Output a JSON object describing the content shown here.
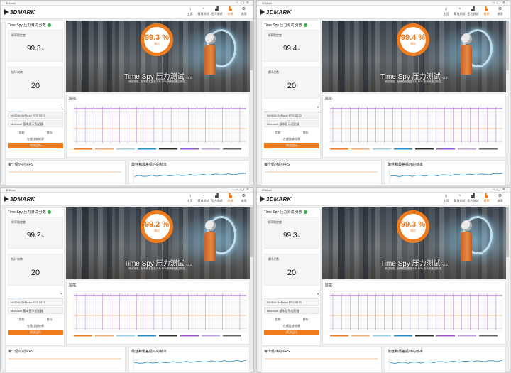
{
  "colors": {
    "accent": "#f07b1d",
    "ok": "#3fb34f",
    "link": "#2a8fd8",
    "line_purple": "#9b59c8",
    "line_orange": "#f0b078",
    "line_blue": "#2b8cc4"
  },
  "app": {
    "window_title": "3DMark",
    "brand": "3DMARK"
  },
  "nav": [
    {
      "icon": "home-icon",
      "glyph": "⌂",
      "label": "主页"
    },
    {
      "icon": "benchmark-icon",
      "glyph": "◔",
      "label": "基准测试"
    },
    {
      "icon": "stress-icon",
      "glyph": "▟",
      "label": "压力测试"
    },
    {
      "icon": "results-icon",
      "glyph": "▙",
      "label": "结果"
    },
    {
      "icon": "options-icon",
      "glyph": "⚙",
      "label": "选项"
    }
  ],
  "quads": [
    {
      "test_title": "Time Spy 压力测试 分数",
      "stability_label": "帧率稳定度",
      "stability_value": "99.3",
      "stability_unit": "%",
      "loops_label": "循环次数",
      "loops_value": "20",
      "gauge_value": "99.3 %",
      "gauge_label": "通过",
      "hero_title": "Time Spy 压力测试",
      "hero_title_suffix": "v1.2",
      "hero_sub": "测试完成。帧率稳定度至少为 97% 的系统通过测试。",
      "monitor_title": "监控",
      "selector": "显示全部硬件",
      "gpu": "NVIDIA GeForce RTX 5070",
      "display": "Microsoft 基本显示适配器",
      "btn_a": "比较",
      "btn_b": "保存",
      "link": "在线比较结果",
      "action_btn": "再次运行",
      "fps_title": "每个循环的 FPS",
      "frame_title": "最佳和最差循环的帧率"
    },
    {
      "test_title": "Time Spy 压力测试 分数",
      "stability_label": "帧率稳定度",
      "stability_value": "99.4",
      "stability_unit": "%",
      "loops_label": "循环次数",
      "loops_value": "20",
      "gauge_value": "99.4 %",
      "gauge_label": "通过",
      "hero_title": "Time Spy 压力测试",
      "hero_title_suffix": "v1.2",
      "hero_sub": "测试完成。帧率稳定度至少为 97% 的系统通过测试。",
      "monitor_title": "监控",
      "selector": "显示全部硬件",
      "gpu": "NVIDIA GeForce RTX 5070",
      "display": "Microsoft 基本显示适配器",
      "btn_a": "比较",
      "btn_b": "保存",
      "link": "在线比较结果",
      "action_btn": "再次运行",
      "fps_title": "每个循环的 FPS",
      "frame_title": "最佳和最差循环的帧率"
    },
    {
      "test_title": "Time Spy 压力测试 分数",
      "stability_label": "帧率稳定度",
      "stability_value": "99.2",
      "stability_unit": "%",
      "loops_label": "循环次数",
      "loops_value": "20",
      "gauge_value": "99.2 %",
      "gauge_label": "通过",
      "hero_title": "Time Spy 压力测试",
      "hero_title_suffix": "v1.2",
      "hero_sub": "测试完成。帧率稳定度至少为 97% 的系统通过测试。",
      "monitor_title": "监控",
      "selector": "显示全部硬件",
      "gpu": "NVIDIA GeForce RTX 5070",
      "display": "Microsoft 基本显示适配器",
      "btn_a": "比较",
      "btn_b": "保存",
      "link": "在线比较结果",
      "action_btn": "再次运行",
      "fps_title": "每个循环的 FPS",
      "frame_title": "最佳和最差循环的帧率"
    },
    {
      "test_title": "Time Spy 压力测试 分数",
      "stability_label": "帧率稳定度",
      "stability_value": "99.3",
      "stability_unit": "%",
      "loops_label": "循环次数",
      "loops_value": "20",
      "gauge_value": "99.3 %",
      "gauge_label": "通过",
      "hero_title": "Time Spy 压力测试",
      "hero_title_suffix": "v1.2",
      "hero_sub": "测试完成。帧率稳定度至少为 97% 的系统通过测试。",
      "monitor_title": "监控",
      "selector": "显示全部硬件",
      "gpu": "NVIDIA GeForce RTX 5070",
      "display": "Microsoft 基本显示适配器",
      "btn_a": "比较",
      "btn_b": "保存",
      "link": "在线比较结果",
      "action_btn": "再次运行",
      "fps_title": "每个循环的 FPS",
      "frame_title": "最佳和最差循环的帧率"
    }
  ]
}
